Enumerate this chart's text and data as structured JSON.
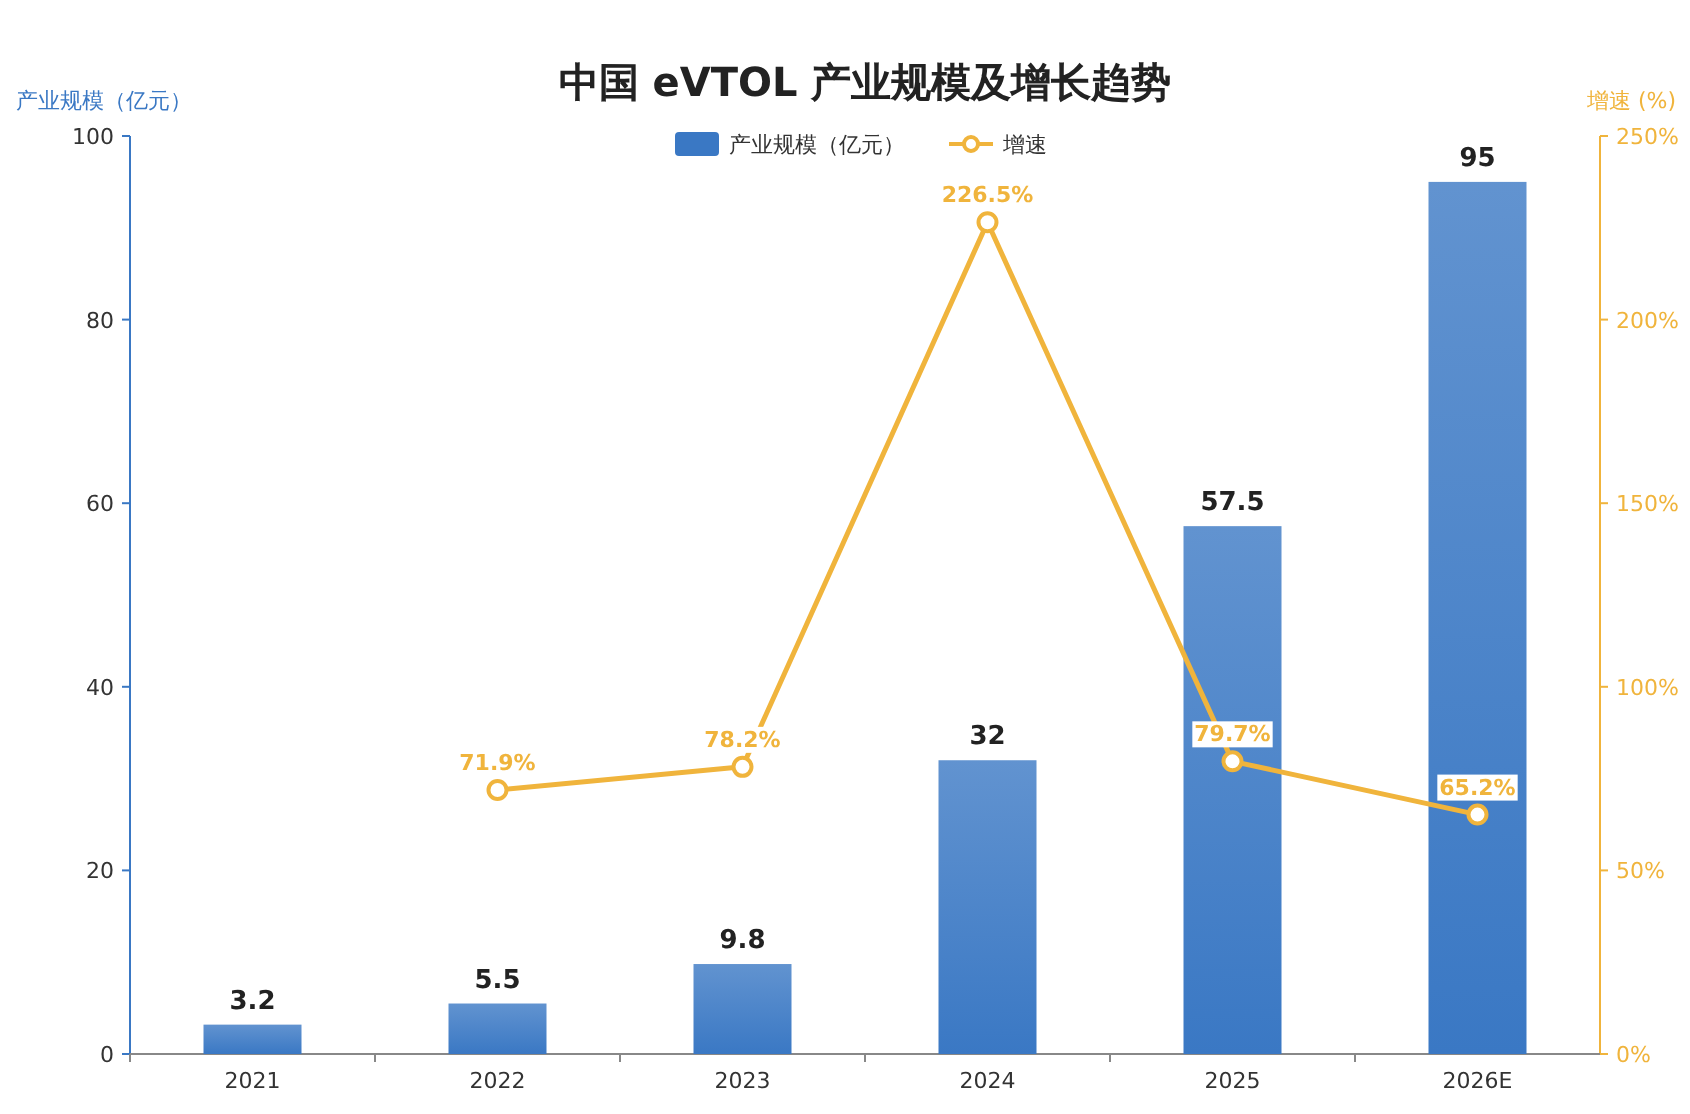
{
  "chart_data": {
    "type": "bar",
    "title": "中国 eVTOL 产业规模及增长趋势",
    "ylabel": "产业规模（亿元）",
    "y2label": "增速 (%)",
    "categories": [
      "2021",
      "2022",
      "2023",
      "2024",
      "2025",
      "2026E"
    ],
    "series": [
      {
        "name": "产业规模（亿元）",
        "color": "#3a78c4",
        "values": [
          3.2,
          5.5,
          9.8,
          32,
          57.5,
          95
        ],
        "value_labels": [
          "3.2",
          "5.5",
          "9.8",
          "32",
          "57.5",
          "95"
        ]
      },
      {
        "name": "增速",
        "type": "line",
        "axis": "y2",
        "color": "#f0b43c",
        "marker": "circle",
        "values": [
          null,
          71.9,
          78.2,
          226.5,
          79.7,
          65.2
        ],
        "value_labels": [
          null,
          "71.9%",
          "78.2%",
          "226.5%",
          "79.7%",
          "65.2%"
        ]
      }
    ],
    "ylim": [
      0,
      100
    ],
    "yticks": [
      0,
      20,
      40,
      60,
      80,
      100
    ],
    "y2lim": [
      0,
      250
    ],
    "y2ticks": [
      {
        "value": 0,
        "label": "0%"
      },
      {
        "value": 50,
        "label": "50%"
      },
      {
        "value": 100,
        "label": "100%"
      },
      {
        "value": 150,
        "label": "150%"
      },
      {
        "value": 200,
        "label": "200%"
      },
      {
        "value": 250,
        "label": "250%"
      }
    ],
    "legend": "top",
    "grid": false
  }
}
